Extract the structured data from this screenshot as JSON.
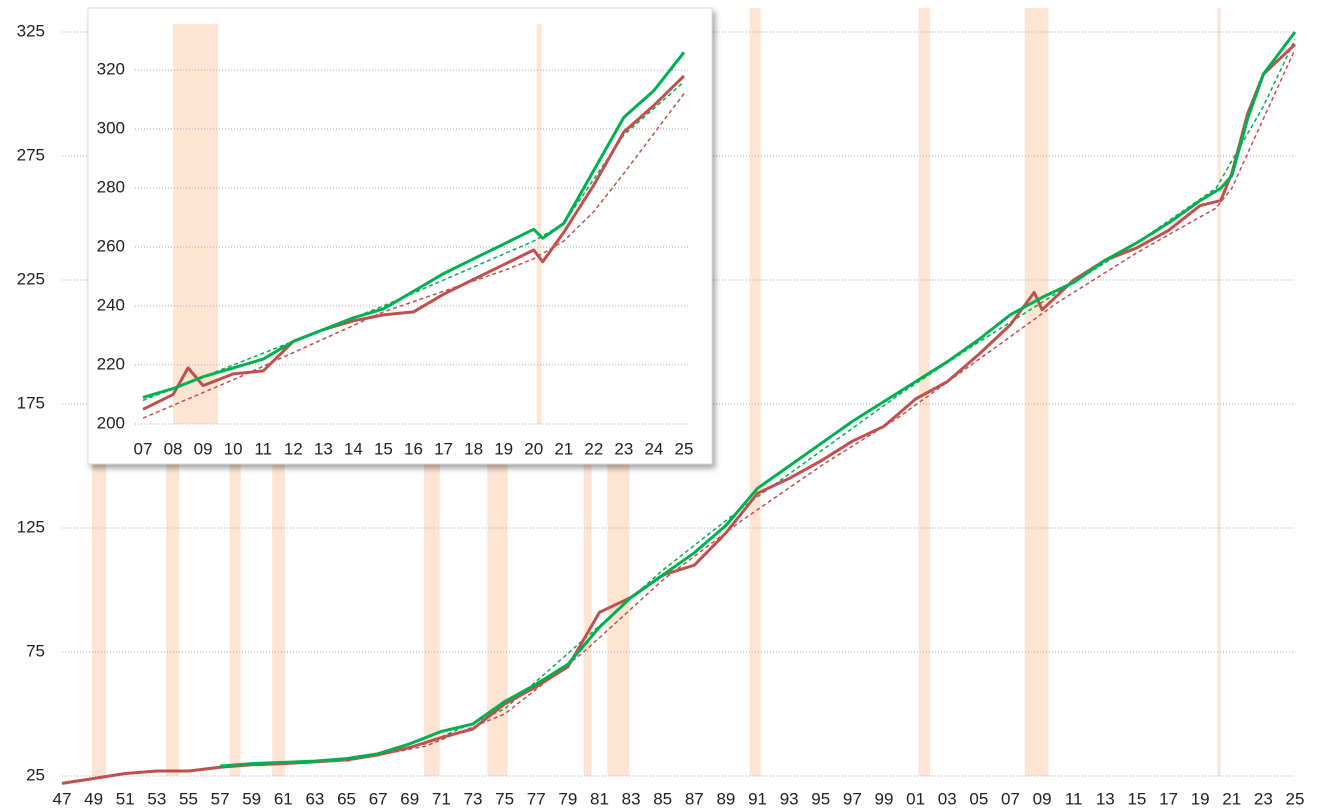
{
  "chart_data": [
    {
      "type": "line",
      "xlim": [
        1947,
        2025
      ],
      "xticks": [
        {
          "value": 1947,
          "label": "47"
        },
        {
          "value": 1949,
          "label": "49"
        },
        {
          "value": 1951,
          "label": "51"
        },
        {
          "value": 1953,
          "label": "53"
        },
        {
          "value": 1955,
          "label": "55"
        },
        {
          "value": 1957,
          "label": "57"
        },
        {
          "value": 1959,
          "label": "59"
        },
        {
          "value": 1961,
          "label": "61"
        },
        {
          "value": 1963,
          "label": "63"
        },
        {
          "value": 1965,
          "label": "65"
        },
        {
          "value": 1967,
          "label": "67"
        },
        {
          "value": 1969,
          "label": "69"
        },
        {
          "value": 1971,
          "label": "71"
        },
        {
          "value": 1973,
          "label": "73"
        },
        {
          "value": 1975,
          "label": "75"
        },
        {
          "value": 1977,
          "label": "77"
        },
        {
          "value": 1979,
          "label": "79"
        },
        {
          "value": 1981,
          "label": "81"
        },
        {
          "value": 1983,
          "label": "83"
        },
        {
          "value": 1985,
          "label": "85"
        },
        {
          "value": 1987,
          "label": "87"
        },
        {
          "value": 1989,
          "label": "89"
        },
        {
          "value": 1991,
          "label": "91"
        },
        {
          "value": 1993,
          "label": "93"
        },
        {
          "value": 1995,
          "label": "95"
        },
        {
          "value": 1997,
          "label": "97"
        },
        {
          "value": 1999,
          "label": "99"
        },
        {
          "value": 2001,
          "label": "01"
        },
        {
          "value": 2003,
          "label": "03"
        },
        {
          "value": 2005,
          "label": "05"
        },
        {
          "value": 2007,
          "label": "07"
        },
        {
          "value": 2009,
          "label": "09"
        },
        {
          "value": 2011,
          "label": "11"
        },
        {
          "value": 2013,
          "label": "13"
        },
        {
          "value": 2015,
          "label": "15"
        },
        {
          "value": 2017,
          "label": "17"
        },
        {
          "value": 2019,
          "label": "19"
        },
        {
          "value": 2021,
          "label": "21"
        },
        {
          "value": 2023,
          "label": "23"
        },
        {
          "value": 2025,
          "label": "25"
        }
      ],
      "ylim": [
        25,
        325
      ],
      "yticks": [
        25,
        75,
        125,
        175,
        225,
        275,
        325
      ],
      "grid": true,
      "shade_color": "#fde4d3",
      "shaded_ranges": [
        [
          1948.9,
          1949.8
        ],
        [
          1953.6,
          1954.4
        ],
        [
          1957.6,
          1958.3
        ],
        [
          1960.3,
          1961.1
        ],
        [
          1969.9,
          1970.9
        ],
        [
          1973.9,
          1975.2
        ],
        [
          1980.0,
          1980.5
        ],
        [
          1981.5,
          1982.9
        ],
        [
          1990.5,
          1991.2
        ],
        [
          2001.2,
          2001.9
        ],
        [
          2007.9,
          2009.4
        ],
        [
          2020.1,
          2020.3
        ]
      ],
      "series": [
        {
          "color": "#c0504d",
          "dashed": true,
          "x": [
            1965,
            1970,
            1975,
            1980,
            1985,
            1990,
            1995,
            2000,
            2005,
            2010,
            2015,
            2020,
            2021,
            2023,
            2025
          ],
          "values": [
            31,
            37,
            50,
            75,
            104,
            128,
            150,
            170,
            193,
            216,
            236,
            254,
            262,
            290,
            318
          ]
        },
        {
          "color": "#00b050",
          "dashed": true,
          "x": [
            1965,
            1970,
            1975,
            1980,
            1985,
            1990,
            1995,
            2000,
            2005,
            2010,
            2015,
            2020,
            2023,
            2025
          ],
          "values": [
            31.5,
            38,
            52,
            80,
            108,
            133,
            156,
            179,
            200,
            220,
            240,
            262,
            295,
            322
          ]
        },
        {
          "color": "#c0504d",
          "dashed": false,
          "x": [
            1947,
            1949,
            1951,
            1953,
            1955,
            1957,
            1959,
            1961,
            1963,
            1965,
            1967,
            1969,
            1971,
            1973,
            1975,
            1977,
            1979,
            1981,
            1983,
            1985,
            1987,
            1989,
            1991,
            1993,
            1995,
            1997,
            1999,
            2001,
            2003,
            2005,
            2007,
            2008.5,
            2009,
            2011,
            2013,
            2015,
            2017,
            2019,
            2020.3,
            2021,
            2022,
            2023,
            2025
          ],
          "values": [
            22,
            24,
            26,
            27,
            27,
            28.5,
            29.5,
            30,
            30.7,
            31.5,
            33.5,
            36.5,
            40.5,
            44,
            54,
            61,
            69,
            91,
            97,
            106,
            110,
            123,
            139,
            145,
            152,
            160,
            166,
            177,
            184,
            195,
            207,
            220,
            213,
            225,
            233,
            238,
            245,
            255,
            257,
            268,
            292,
            308,
            320
          ]
        },
        {
          "color": "#00b050",
          "dashed": false,
          "x": [
            1957,
            1959,
            1961,
            1963,
            1965,
            1967,
            1969,
            1971,
            1973,
            1975,
            1977,
            1979,
            1981,
            1983,
            1985,
            1987,
            1989,
            1991,
            1993,
            1995,
            1997,
            1999,
            2001,
            2003,
            2005,
            2007,
            2009,
            2011,
            2013,
            2015,
            2017,
            2019,
            2020.3,
            2021,
            2022,
            2023,
            2025
          ],
          "values": [
            29,
            30,
            30.5,
            31,
            32,
            34,
            38,
            43,
            46,
            55,
            62,
            70,
            85,
            97,
            106,
            115,
            126,
            141,
            150,
            159,
            168,
            176,
            184,
            192,
            201,
            211,
            218,
            224,
            233,
            240,
            248,
            257,
            262,
            267,
            290,
            308,
            325
          ]
        }
      ]
    },
    {
      "type": "line",
      "xlim": [
        2007,
        2025
      ],
      "xticks": [
        {
          "value": 2007,
          "label": "07"
        },
        {
          "value": 2008,
          "label": "08"
        },
        {
          "value": 2009,
          "label": "09"
        },
        {
          "value": 2010,
          "label": "10"
        },
        {
          "value": 2011,
          "label": "11"
        },
        {
          "value": 2012,
          "label": "12"
        },
        {
          "value": 2013,
          "label": "13"
        },
        {
          "value": 2014,
          "label": "14"
        },
        {
          "value": 2015,
          "label": "15"
        },
        {
          "value": 2016,
          "label": "16"
        },
        {
          "value": 2017,
          "label": "17"
        },
        {
          "value": 2018,
          "label": "18"
        },
        {
          "value": 2019,
          "label": "19"
        },
        {
          "value": 2020,
          "label": "20"
        },
        {
          "value": 2021,
          "label": "21"
        },
        {
          "value": 2022,
          "label": "22"
        },
        {
          "value": 2023,
          "label": "23"
        },
        {
          "value": 2024,
          "label": "24"
        },
        {
          "value": 2025,
          "label": "25"
        }
      ],
      "ylim": [
        200,
        320
      ],
      "yticks": [
        200,
        220,
        240,
        260,
        280,
        300,
        320
      ],
      "grid": true,
      "shade_color": "#fde4d3",
      "shaded_ranges": [
        [
          2008.0,
          2009.5
        ],
        [
          2020.1,
          2020.25
        ]
      ],
      "series": [
        {
          "color": "#c0504d",
          "dashed": true,
          "x": [
            2007,
            2010,
            2015,
            2019,
            2020,
            2021,
            2022,
            2023,
            2025
          ],
          "values": [
            202,
            215,
            238,
            252,
            256,
            262,
            272,
            285,
            312
          ]
        },
        {
          "color": "#00b050",
          "dashed": true,
          "x": [
            2007,
            2015,
            2020,
            2021,
            2022,
            2023,
            2025
          ],
          "values": [
            208,
            240,
            262,
            268,
            283,
            298,
            316
          ]
        },
        {
          "color": "#c0504d",
          "dashed": false,
          "x": [
            2007,
            2008,
            2008.5,
            2009,
            2010,
            2011,
            2012,
            2013,
            2014,
            2015,
            2016,
            2017,
            2018,
            2019,
            2020,
            2020.3,
            2021,
            2022,
            2023,
            2024,
            2025
          ],
          "values": [
            205,
            210,
            219,
            213,
            217,
            218,
            228,
            232,
            235,
            237,
            238,
            244,
            249,
            254,
            259,
            255,
            265,
            281,
            299,
            308,
            318
          ]
        },
        {
          "color": "#00b050",
          "dashed": false,
          "x": [
            2007,
            2008,
            2009,
            2010,
            2011,
            2012,
            2013,
            2014,
            2015,
            2016,
            2017,
            2018,
            2019,
            2020,
            2020.3,
            2021,
            2022,
            2023,
            2024,
            2025
          ],
          "values": [
            209,
            212,
            216,
            219,
            222,
            228,
            232,
            236,
            239,
            245,
            251,
            256,
            261,
            266,
            263,
            268,
            286,
            304,
            313,
            326
          ]
        }
      ]
    }
  ]
}
